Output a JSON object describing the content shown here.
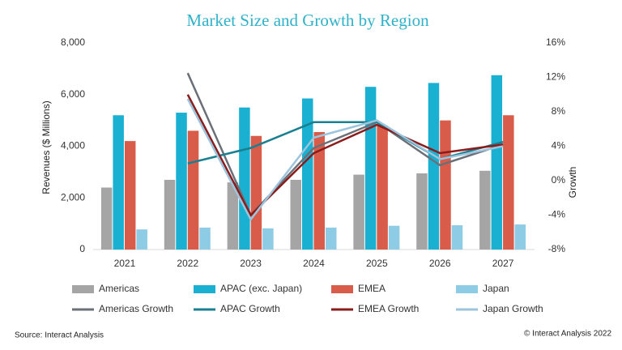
{
  "chart_data": {
    "type": "bar",
    "title": "Market Size and Growth by Region",
    "y_label": "Revenues ($ Millions)",
    "y2_label": "Growth",
    "source": "Source: Interact Analysis",
    "copyright": "© Interact Analysis 2022",
    "categories": [
      "2021",
      "2022",
      "2023",
      "2024",
      "2025",
      "2026",
      "2027"
    ],
    "series": [
      {
        "name": "Americas",
        "type": "bar",
        "color": "#a5a5a5",
        "values": [
          2400,
          2700,
          2600,
          2700,
          2900,
          2950,
          3050
        ]
      },
      {
        "name": "APAC (exc. Japan)",
        "type": "bar",
        "color": "#1ab0d2",
        "values": [
          5200,
          5300,
          5500,
          5850,
          6300,
          6450,
          6750
        ]
      },
      {
        "name": "EMEA",
        "type": "bar",
        "color": "#d95b49",
        "values": [
          4200,
          4600,
          4400,
          4550,
          4800,
          5000,
          5200
        ]
      },
      {
        "name": "Japan",
        "type": "bar",
        "color": "#8ecbe4",
        "values": [
          780,
          850,
          820,
          850,
          920,
          940,
          970
        ]
      },
      {
        "name": "Americas Growth",
        "type": "line",
        "axis": "y2",
        "color": "#6b7078",
        "values": [
          null,
          12.5,
          -4,
          3.8,
          6.8,
          1.8,
          4.2
        ]
      },
      {
        "name": "APAC Growth",
        "type": "line",
        "axis": "y2",
        "color": "#1a7f8f",
        "values": [
          null,
          2,
          3.8,
          6.8,
          6.8,
          2.5,
          4.5
        ]
      },
      {
        "name": "EMEA Growth",
        "type": "line",
        "axis": "y2",
        "color": "#8b1c1c",
        "values": [
          null,
          10,
          -4,
          3.2,
          6.5,
          3.2,
          4.2
        ]
      },
      {
        "name": "Japan Growth",
        "type": "line",
        "axis": "y2",
        "color": "#9cc4dc",
        "values": [
          null,
          9.5,
          -4.5,
          5,
          7,
          2.5,
          4
        ]
      }
    ],
    "ylim": [
      0,
      8000
    ],
    "yticks": [
      0,
      {
        "value": 2000,
        "label": "2,000"
      },
      {
        "value": 4000,
        "label": "4,000"
      },
      {
        "value": 6000,
        "label": "6,000"
      },
      {
        "value": 8000,
        "label": "8,000"
      }
    ],
    "y2lim": [
      -8,
      16
    ],
    "y2ticks": [
      {
        "value": -8,
        "label": "-8%"
      },
      {
        "value": -4,
        "label": "-4%"
      },
      {
        "value": 0,
        "label": "0%"
      },
      {
        "value": 4,
        "label": "4%"
      },
      {
        "value": 8,
        "label": "8%"
      },
      {
        "value": 12,
        "label": "12%"
      },
      {
        "value": 16,
        "label": "16%"
      }
    ]
  }
}
